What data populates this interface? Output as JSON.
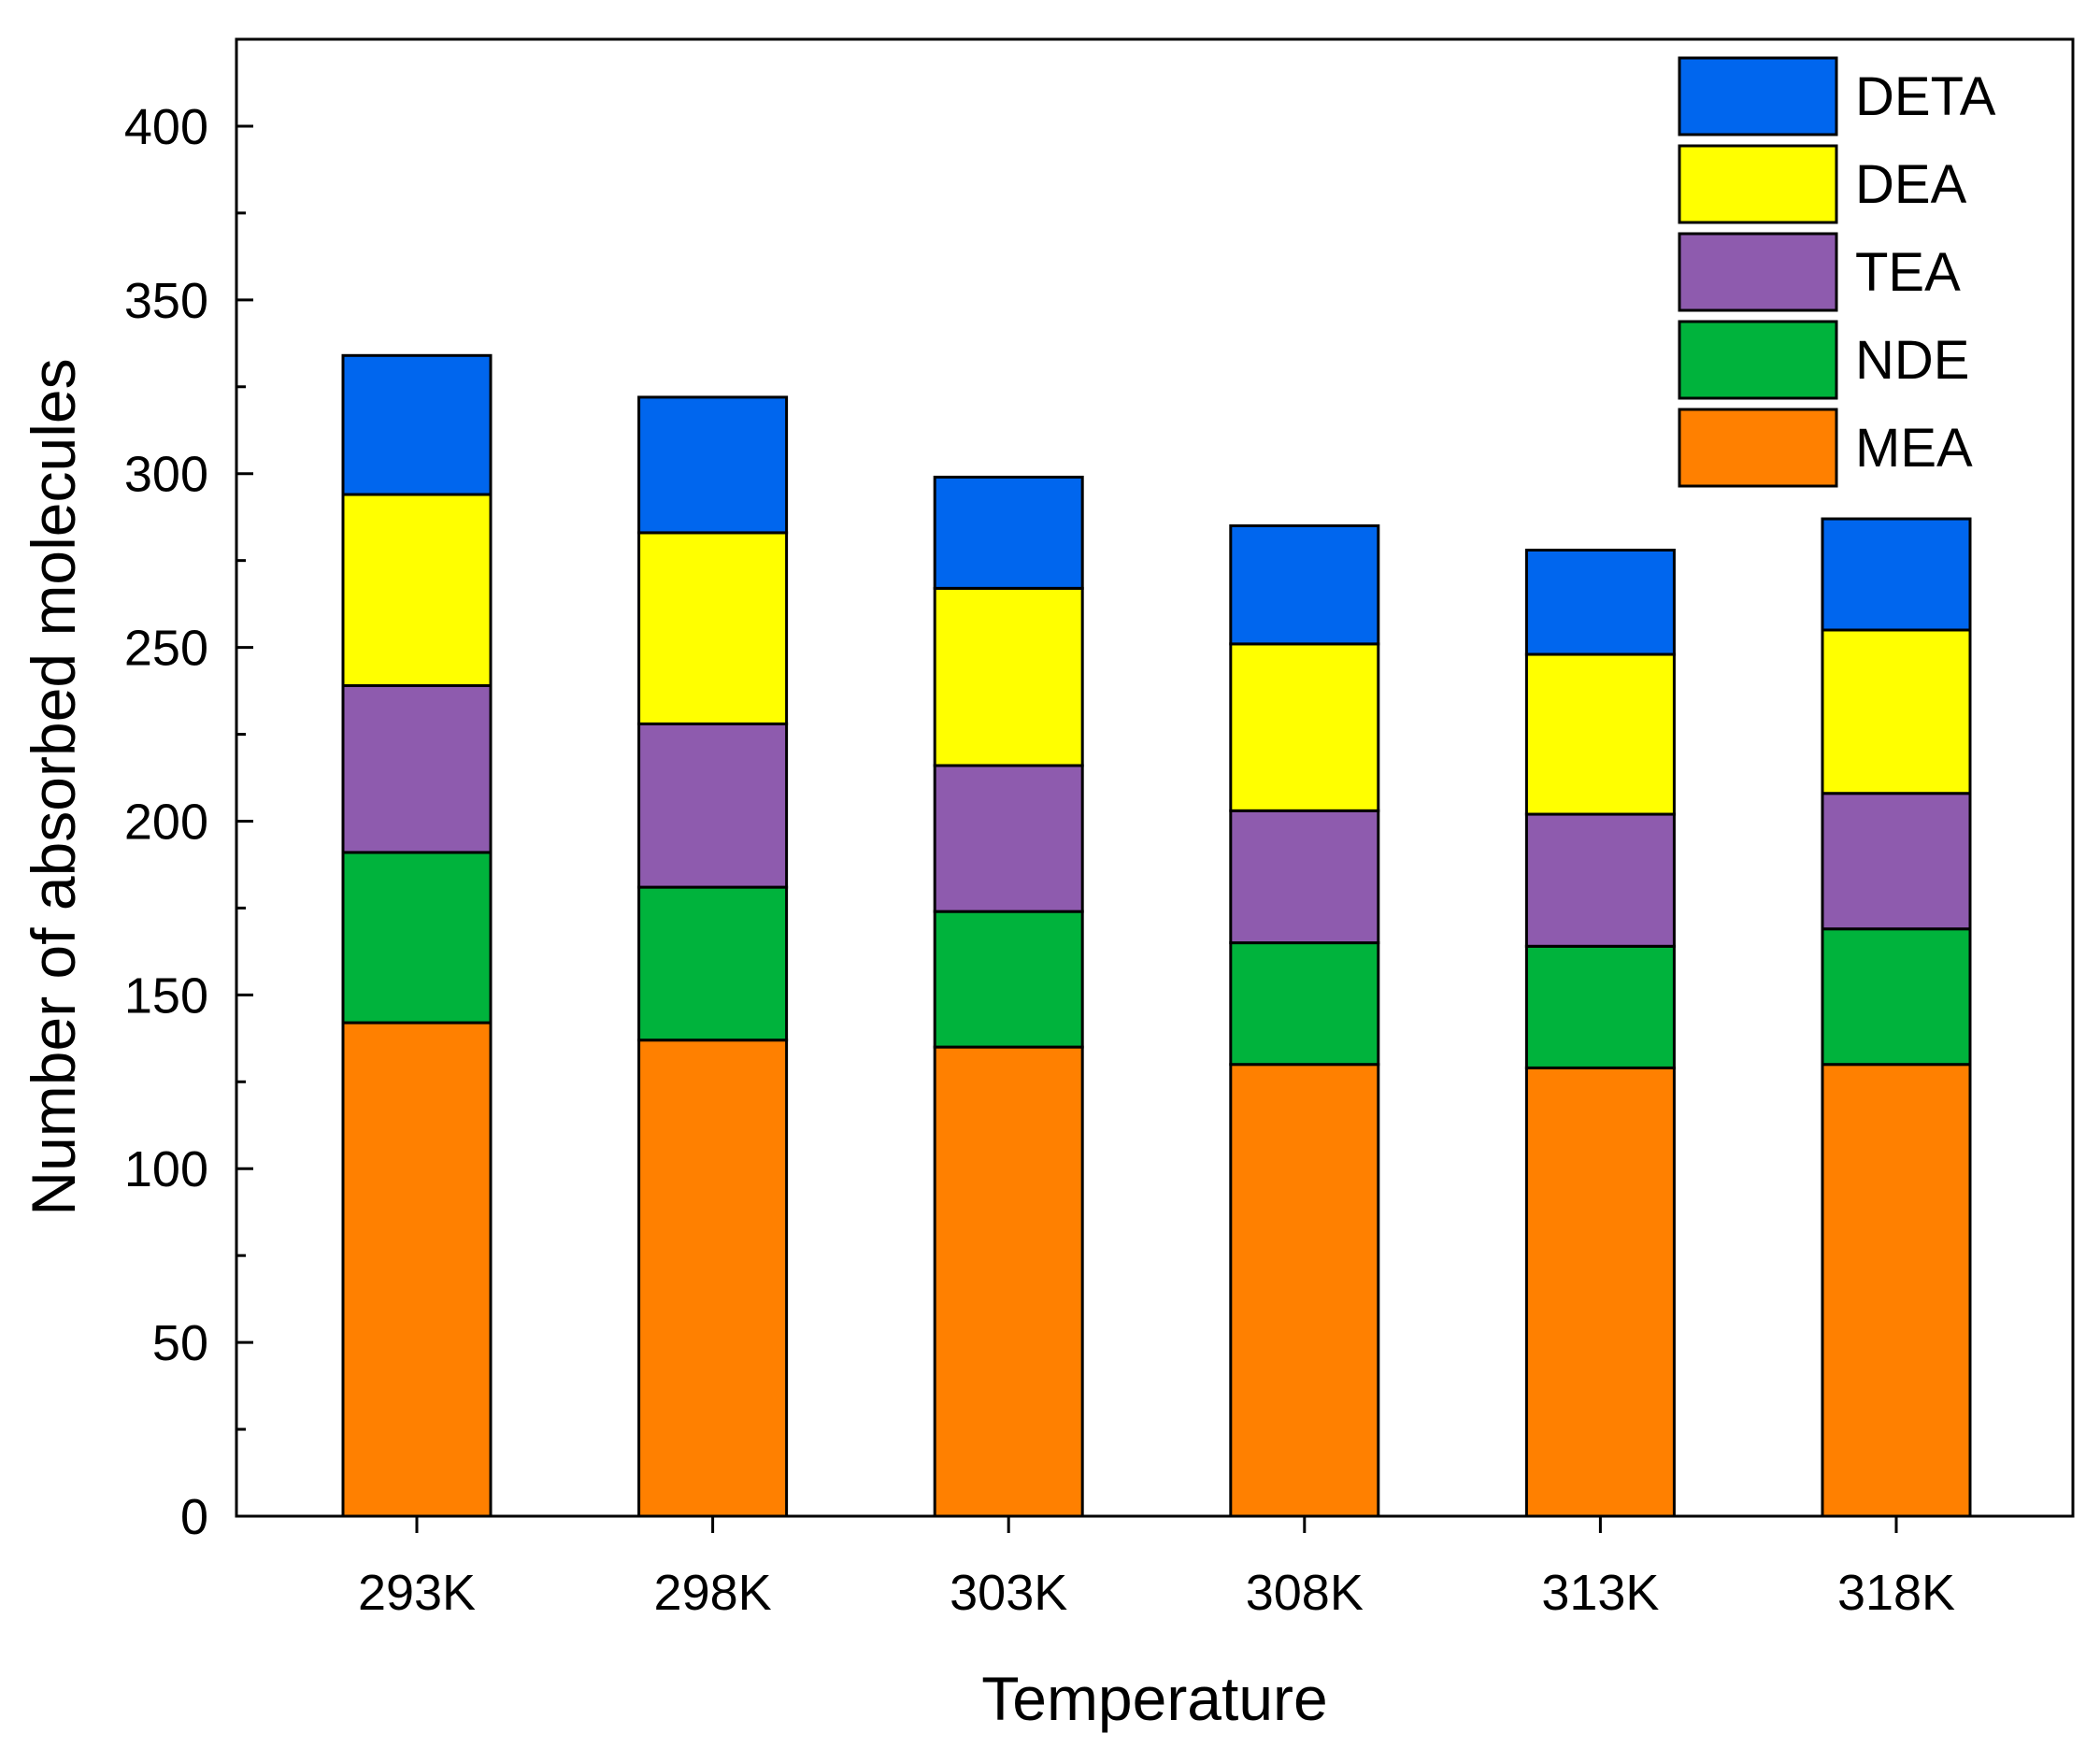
{
  "chart_data": {
    "type": "bar",
    "stacked": true,
    "title": "",
    "xlabel": "Temperature",
    "ylabel": "Number of absorbed molecules",
    "ylim": [
      0,
      425
    ],
    "yticks": [
      0,
      50,
      100,
      150,
      200,
      250,
      300,
      350,
      400
    ],
    "y_minor_step": 25,
    "categories": [
      "293K",
      "298K",
      "303K",
      "308K",
      "313K",
      "318K"
    ],
    "series": [
      {
        "name": "MEA",
        "color": "#FF8000",
        "values": [
          142,
          137,
          135,
          130,
          129,
          130
        ]
      },
      {
        "name": "NDE",
        "color": "#00B33C",
        "values": [
          49,
          44,
          39,
          35,
          35,
          39
        ]
      },
      {
        "name": "TEA",
        "color": "#8E5BAE",
        "values": [
          48,
          47,
          42,
          38,
          38,
          39
        ]
      },
      {
        "name": "DEA",
        "color": "#FFFF00",
        "values": [
          55,
          55,
          51,
          48,
          46,
          47
        ]
      },
      {
        "name": "DETA",
        "color": "#0066EE",
        "values": [
          40,
          39,
          32,
          34,
          30,
          32
        ]
      }
    ],
    "legend_order": [
      "DETA",
      "DEA",
      "TEA",
      "NDE",
      "MEA"
    ],
    "legend_position": "top-right",
    "grid": false
  }
}
